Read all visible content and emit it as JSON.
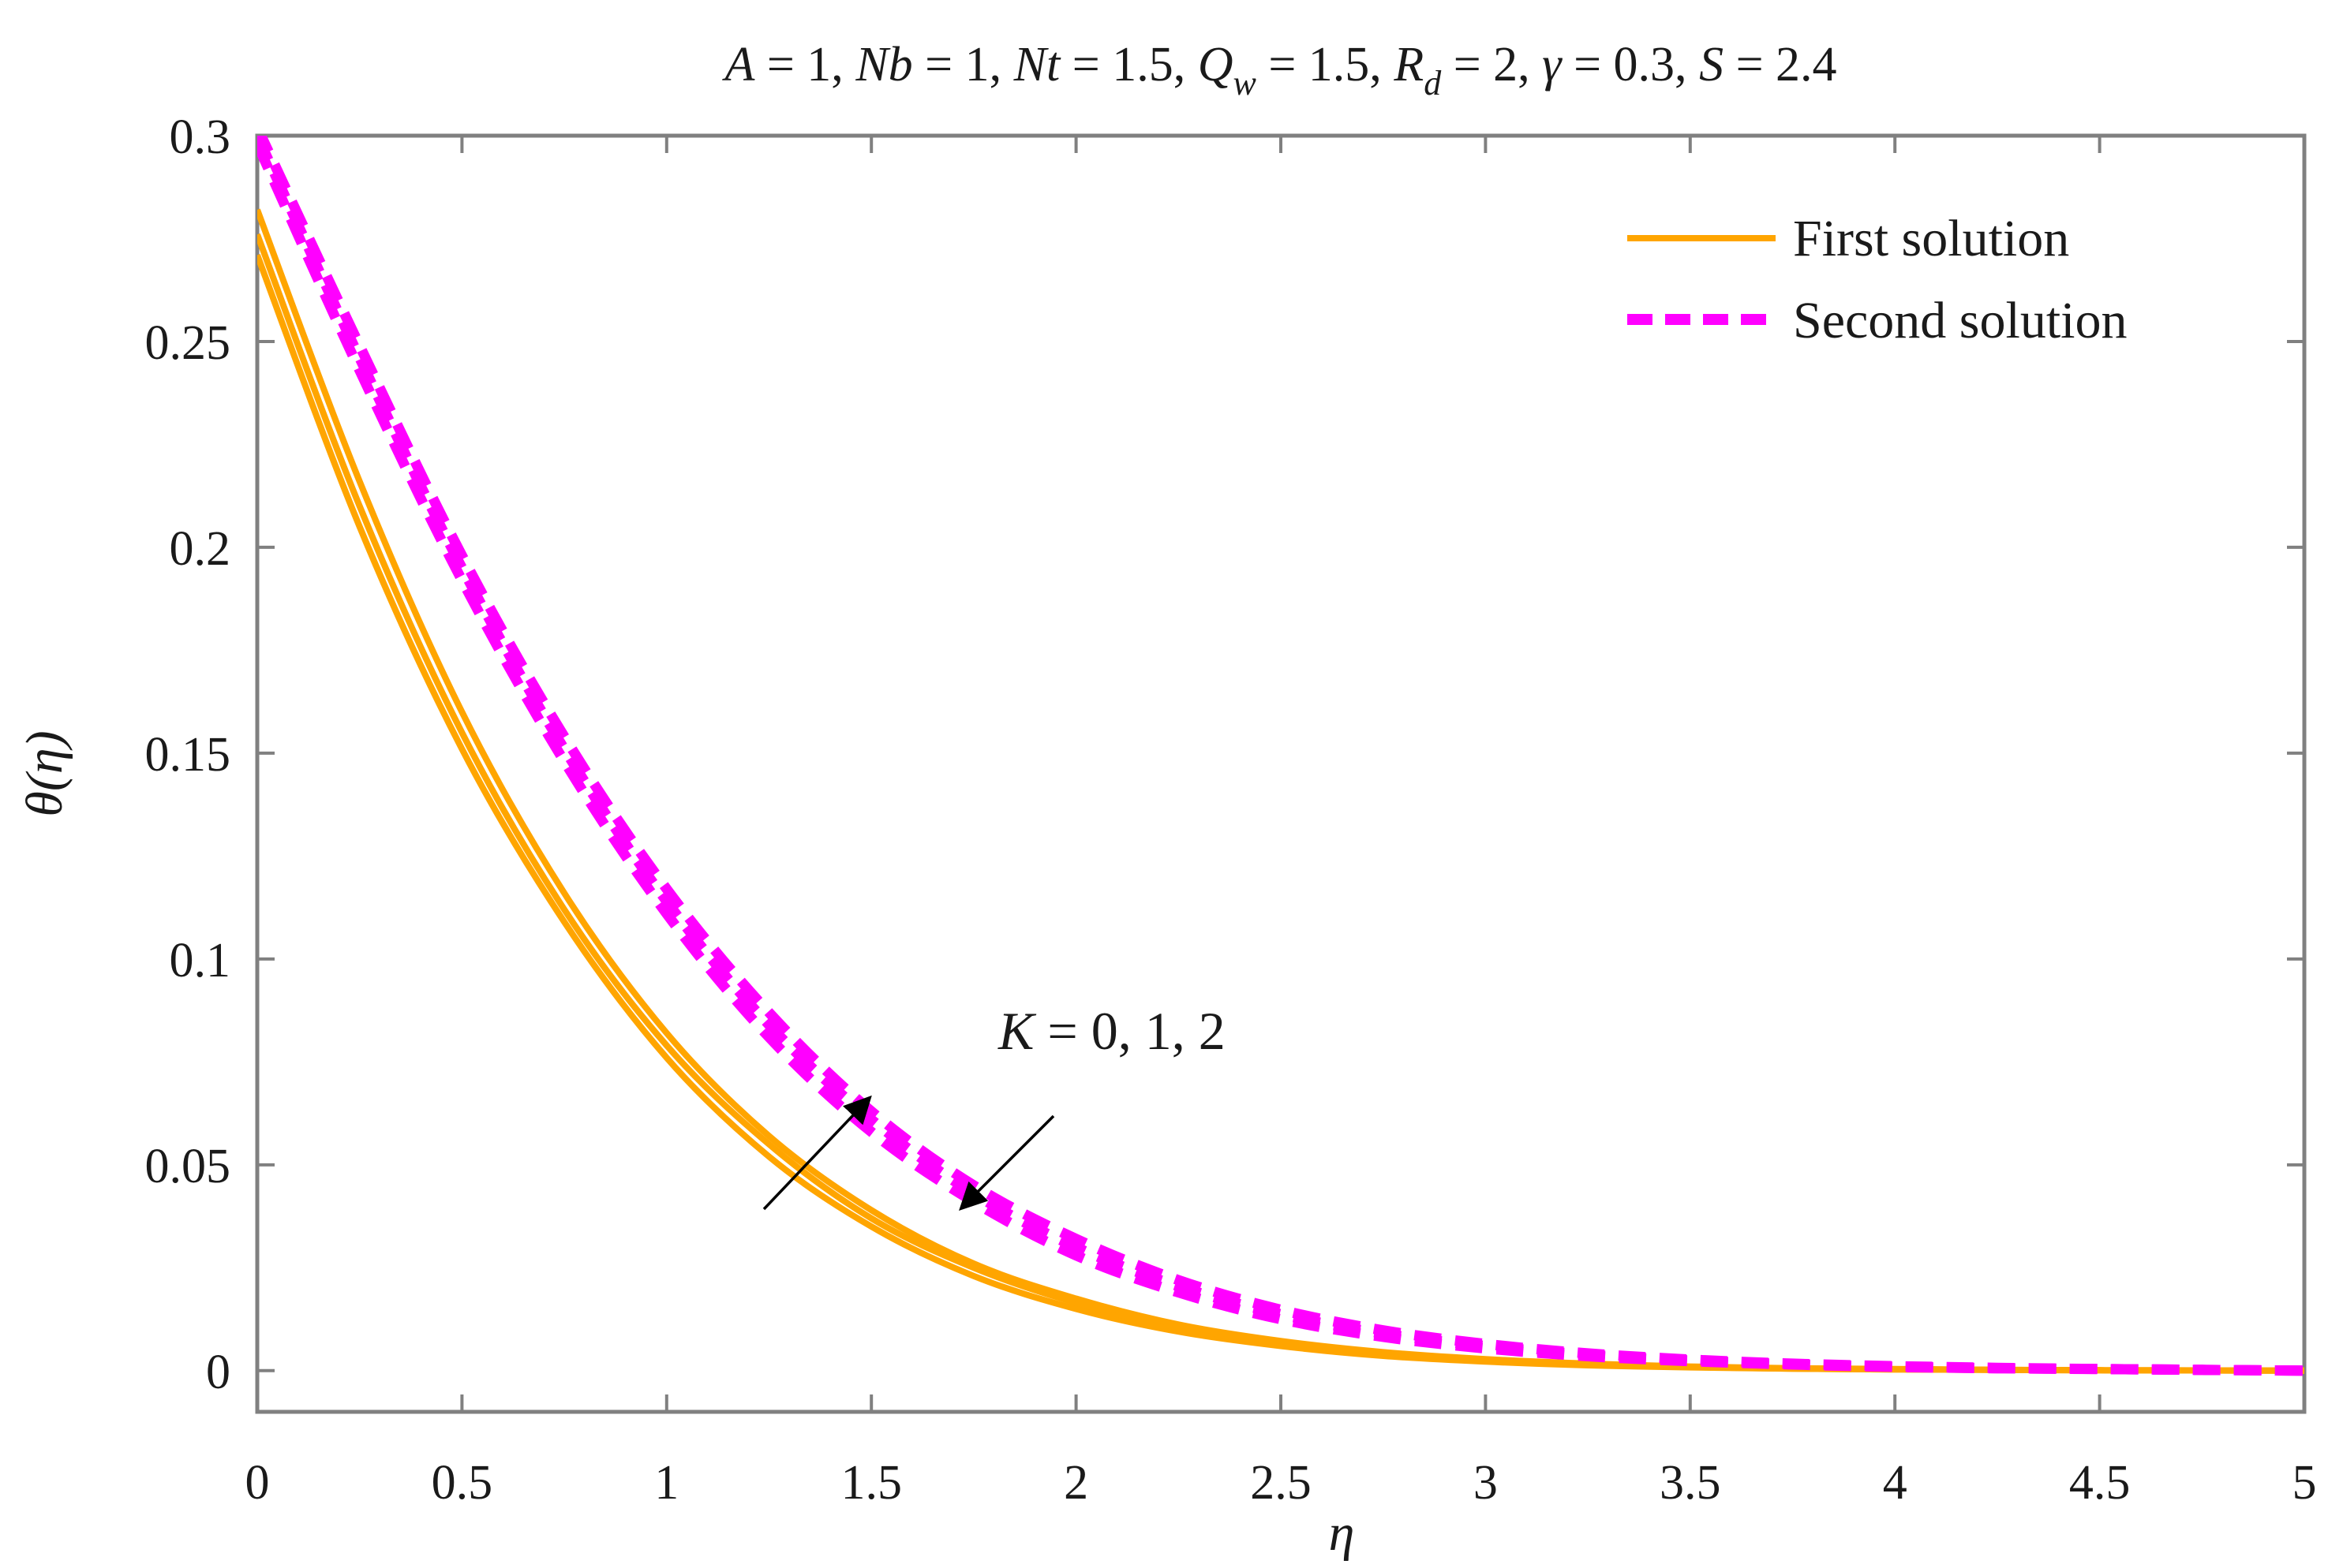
{
  "chart_data": {
    "type": "line",
    "title": "A = 1, Nb = 1, Nt = 1.5, Q_w = 1.5, R_d = 2, γ = 0.3, S = 2.4",
    "title_parts": {
      "segments": [
        {
          "text": "A",
          "style": "italic"
        },
        {
          "text": " = 1, ",
          "style": "normal"
        },
        {
          "text": "Nb",
          "style": "italic"
        },
        {
          "text": " = 1, ",
          "style": "normal"
        },
        {
          "text": "Nt",
          "style": "italic"
        },
        {
          "text": " = 1.5, ",
          "style": "normal"
        },
        {
          "text": "Q",
          "style": "italic"
        },
        {
          "text": "w",
          "style": "italic-sub"
        },
        {
          "text": " = 1.5, ",
          "style": "normal"
        },
        {
          "text": "R",
          "style": "italic"
        },
        {
          "text": "d",
          "style": "italic-sub"
        },
        {
          "text": " = 2, ",
          "style": "normal"
        },
        {
          "text": "γ",
          "style": "italic"
        },
        {
          "text": " = 0.3, ",
          "style": "normal"
        },
        {
          "text": "S",
          "style": "italic"
        },
        {
          "text": " = 2.4",
          "style": "normal"
        }
      ]
    },
    "xlabel": "η",
    "ylabel": "θ(η)",
    "xlim": [
      0,
      5
    ],
    "ylim": [
      -0.01,
      0.3
    ],
    "xticks": [
      0,
      0.5,
      1,
      1.5,
      2,
      2.5,
      3,
      3.5,
      4,
      4.5,
      5
    ],
    "xtick_labels": [
      "0",
      "0.5",
      "1",
      "1.5",
      "2",
      "2.5",
      "3",
      "3.5",
      "4",
      "4.5",
      "5"
    ],
    "yticks": [
      0,
      0.05,
      0.1,
      0.15,
      0.2,
      0.25,
      0.3
    ],
    "ytick_labels": [
      "0",
      "0.05",
      "0.1",
      "0.15",
      "0.2",
      "0.25",
      "0.3"
    ],
    "grid": false,
    "legend": {
      "placement": "top-right",
      "entries": [
        "First solution",
        "Second solution"
      ]
    },
    "annotation": {
      "text": "K = 0, 1, 2",
      "italic_part": "K",
      "rest": " = 0, 1, 2"
    },
    "colors": {
      "first": "#FFA500",
      "second": "#FF00FF",
      "axis": "#808080",
      "text": "#1a1a1a"
    },
    "x": [
      0,
      0.25,
      0.5,
      0.75,
      1,
      1.25,
      1.5,
      1.75,
      2,
      2.25,
      2.5,
      2.75,
      3,
      3.25,
      3.5,
      3.75,
      4,
      4.25,
      4.5,
      4.75,
      5
    ],
    "series": [
      {
        "group": "First solution",
        "values": [
          0.271,
          0.205,
          0.151,
          0.109,
          0.076,
          0.052,
          0.035,
          0.023,
          0.015,
          0.0095,
          0.006,
          0.0036,
          0.0022,
          0.0013,
          0.0008,
          0.0005,
          0.0003,
          0.0002,
          0.0001,
          5e-05,
          0.0
        ]
      },
      {
        "group": "First solution",
        "values": [
          0.276,
          0.21,
          0.155,
          0.112,
          0.079,
          0.055,
          0.037,
          0.025,
          0.0165,
          0.0105,
          0.0067,
          0.0041,
          0.0025,
          0.0015,
          0.0009,
          0.0005,
          0.0003,
          0.0002,
          0.0001,
          5e-05,
          0.0
        ]
      },
      {
        "group": "First solution",
        "values": [
          0.282,
          0.216,
          0.16,
          0.116,
          0.082,
          0.057,
          0.039,
          0.026,
          0.0175,
          0.0112,
          0.0072,
          0.0045,
          0.0028,
          0.0017,
          0.001,
          0.0006,
          0.0004,
          0.0002,
          0.0001,
          5e-05,
          0.0
        ]
      },
      {
        "group": "Second solution",
        "values": [
          0.298,
          0.243,
          0.192,
          0.148,
          0.111,
          0.081,
          0.058,
          0.041,
          0.028,
          0.019,
          0.0125,
          0.0082,
          0.0054,
          0.0035,
          0.0023,
          0.0015,
          0.0009,
          0.0006,
          0.0004,
          0.0002,
          0.0
        ]
      },
      {
        "group": "Second solution",
        "values": [
          0.3,
          0.246,
          0.195,
          0.151,
          0.114,
          0.084,
          0.061,
          0.043,
          0.03,
          0.0205,
          0.0137,
          0.009,
          0.006,
          0.0039,
          0.0025,
          0.0016,
          0.001,
          0.0006,
          0.0004,
          0.0002,
          0.0
        ]
      },
      {
        "group": "Second solution",
        "values": [
          0.302,
          0.249,
          0.198,
          0.154,
          0.117,
          0.087,
          0.063,
          0.045,
          0.032,
          0.022,
          0.0148,
          0.0098,
          0.0065,
          0.0042,
          0.0027,
          0.0017,
          0.0011,
          0.0007,
          0.0004,
          0.0002,
          0.0
        ]
      }
    ]
  }
}
